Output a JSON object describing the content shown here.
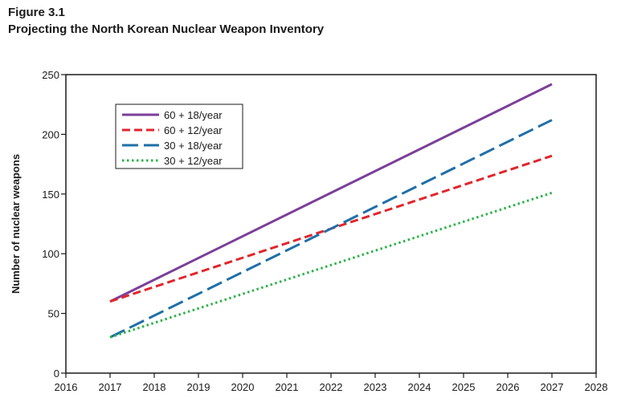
{
  "figure": {
    "label": "Figure 3.1",
    "title": "Projecting the North Korean Nuclear Weapon Inventory"
  },
  "chart_data": {
    "type": "line",
    "title": "Projecting the North Korean Nuclear Weapon Inventory",
    "xlabel": "",
    "ylabel": "Number of nuclear weapons",
    "xlim": [
      2016,
      2028
    ],
    "ylim": [
      0,
      250
    ],
    "xticks": [
      2016,
      2017,
      2018,
      2019,
      2020,
      2021,
      2022,
      2023,
      2024,
      2025,
      2026,
      2027,
      2028
    ],
    "yticks": [
      0,
      50,
      100,
      150,
      200,
      250
    ],
    "grid": false,
    "legend_position": "top-left",
    "series": [
      {
        "name": "60 + 18/year",
        "color": "#7b3f98",
        "style": "solid",
        "x": [
          2017,
          2027
        ],
        "y": [
          60,
          242
        ]
      },
      {
        "name": "60 + 12/year",
        "color": "#e0262c",
        "style": "dashed",
        "x": [
          2017,
          2027
        ],
        "y": [
          60,
          182
        ]
      },
      {
        "name": "30 + 18/year",
        "color": "#1f6fa7",
        "style": "long-dashed",
        "x": [
          2017,
          2027
        ],
        "y": [
          30,
          212
        ]
      },
      {
        "name": "30 + 12/year",
        "color": "#2eb24a",
        "style": "dotted",
        "x": [
          2017,
          2027
        ],
        "y": [
          30,
          151
        ]
      }
    ]
  }
}
